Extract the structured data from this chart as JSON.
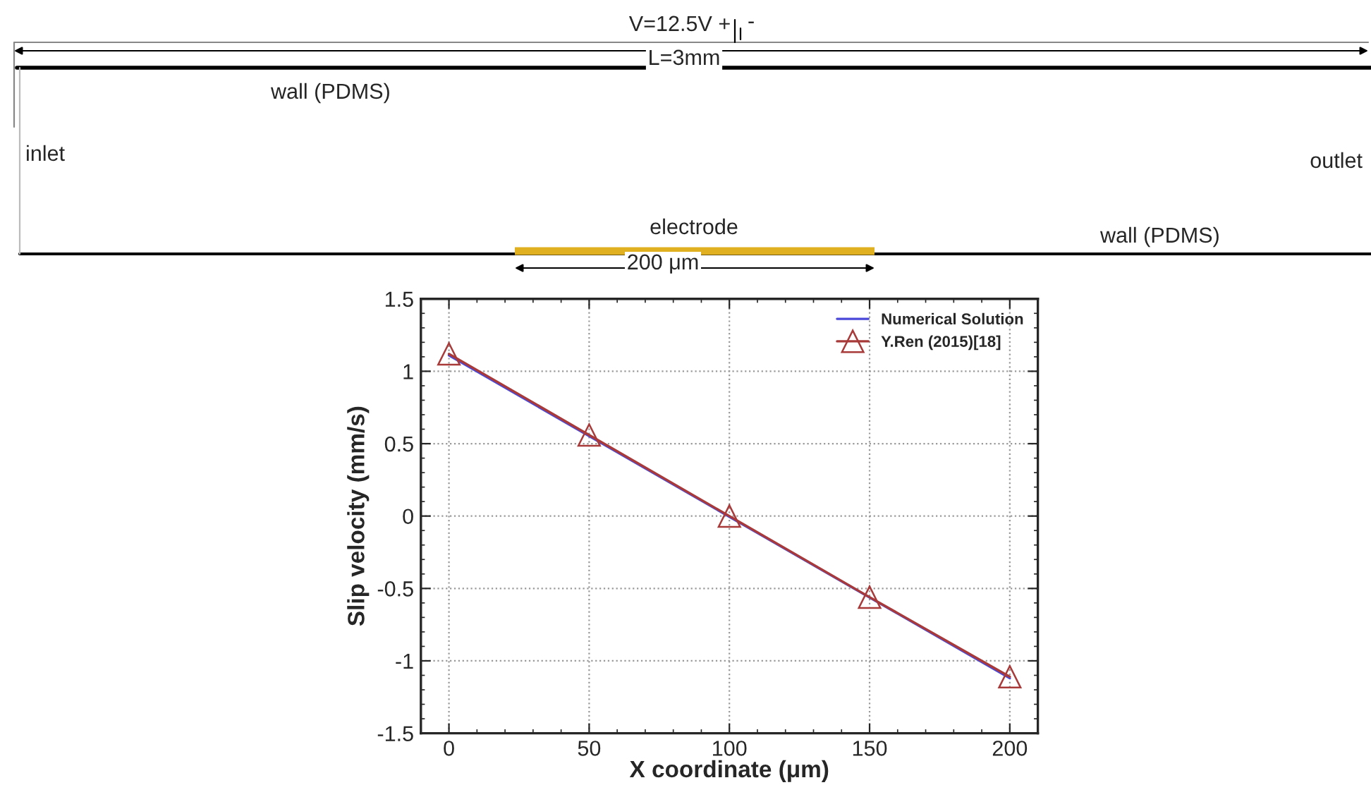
{
  "chart_data": {
    "type": "line",
    "xlabel": "X coordinate (μm)",
    "ylabel": "Slip velocity (mm/s)",
    "xlim": [
      -10,
      210
    ],
    "xticks": [
      0,
      50,
      100,
      150,
      200
    ],
    "ylim": [
      -1.5,
      1.5
    ],
    "yticks": [
      -1.5,
      -1,
      -0.5,
      0,
      0.5,
      1,
      1.5
    ],
    "grid": true,
    "legend": "top right",
    "series": [
      {
        "name": "Numerical Solution",
        "color": "#4a48d8",
        "x": [
          0,
          200
        ],
        "values": [
          1.11,
          -1.12
        ],
        "marker": "none"
      },
      {
        "name": "Y.Ren (2015)[18]",
        "color": "#a83a3a",
        "x": [
          0,
          50,
          100,
          150,
          200
        ],
        "values": [
          1.12,
          0.56,
          0.0,
          -0.56,
          -1.11
        ],
        "marker": "triangle"
      }
    ],
    "annotations": [
      "V=12.5V +",
      "-",
      "L=3mm",
      "wall (PDMS)",
      "inlet",
      "outlet",
      "electrode",
      "wall (PDMS)",
      "200 μm"
    ]
  }
}
